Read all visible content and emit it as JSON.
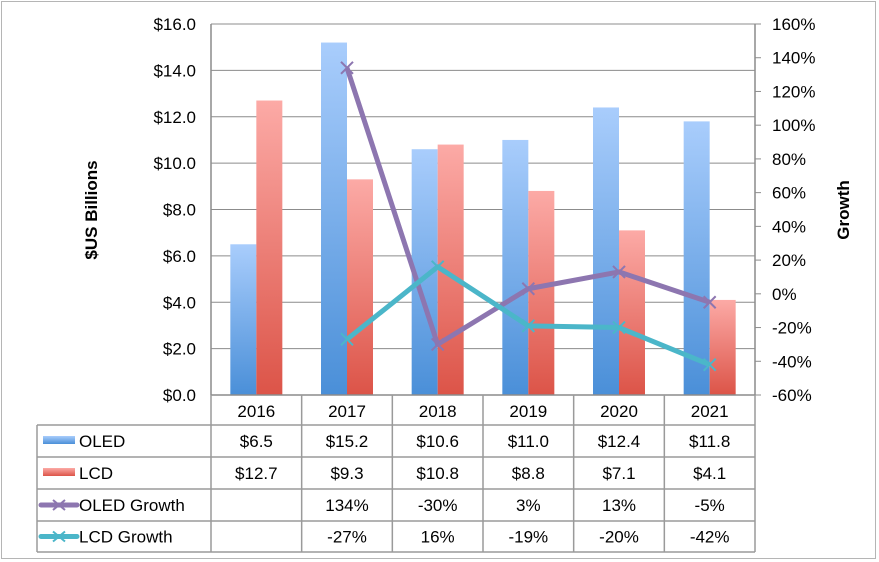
{
  "chart_data": {
    "type": "bar",
    "categories": [
      "2016",
      "2017",
      "2018",
      "2019",
      "2020",
      "2021"
    ],
    "series": [
      {
        "name": "OLED",
        "kind": "bar",
        "axis": "left",
        "color": "#5b9bdf",
        "values": [
          6.5,
          15.2,
          10.6,
          11.0,
          12.4,
          11.8
        ],
        "labels": [
          "$6.5",
          "$15.2",
          "$10.6",
          "$11.0",
          "$12.4",
          "$11.8"
        ]
      },
      {
        "name": "LCD",
        "kind": "bar",
        "axis": "left",
        "color": "#e0635a",
        "values": [
          12.7,
          9.3,
          10.8,
          8.8,
          7.1,
          4.1
        ],
        "labels": [
          "$12.7",
          "$9.3",
          "$10.8",
          "$8.8",
          "$7.1",
          "$4.1"
        ]
      },
      {
        "name": "OLED Growth",
        "kind": "line",
        "axis": "right",
        "color": "#8d76b0",
        "values": [
          null,
          134,
          -30,
          3,
          13,
          -5
        ],
        "labels": [
          "",
          "134%",
          "-30%",
          "3%",
          "13%",
          "-5%"
        ]
      },
      {
        "name": "LCD Growth",
        "kind": "line",
        "axis": "right",
        "color": "#4bb6c9",
        "values": [
          null,
          -27,
          16,
          -19,
          -20,
          -42
        ],
        "labels": [
          "",
          "-27%",
          "16%",
          "-19%",
          "-20%",
          "-42%"
        ]
      }
    ],
    "ylabel": "$US Billions",
    "y2label": "Growth",
    "ylim": [
      0,
      16
    ],
    "y2lim": [
      -60,
      160
    ],
    "yticks": [
      "$0.0",
      "$2.0",
      "$4.0",
      "$6.0",
      "$8.0",
      "$10.0",
      "$12.0",
      "$14.0",
      "$16.0"
    ],
    "y2ticks": [
      "-60%",
      "-40%",
      "-20%",
      "0%",
      "20%",
      "40%",
      "60%",
      "80%",
      "100%",
      "120%",
      "140%",
      "160%"
    ],
    "grid": true,
    "legend": "data-table-below"
  }
}
